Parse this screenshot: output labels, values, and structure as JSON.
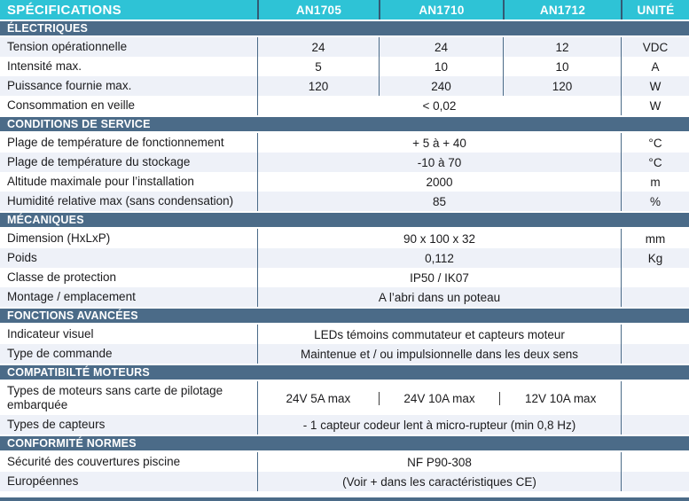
{
  "table": {
    "header": {
      "spec_label": "SPÉCIFICATIONS",
      "columns": [
        "AN1705",
        "AN1710",
        "AN1712"
      ],
      "unit_label": "UNITÉ"
    },
    "colors": {
      "teal": "#2ec3d6",
      "slate": "#4b6b88",
      "header_divider": "#335a74",
      "row_alt": "#eef1f8",
      "mini_divider": "#3c3c3c"
    },
    "sections": [
      {
        "title": "ÉLECTRIQUES",
        "rows": [
          {
            "label": "Tension opérationnelle",
            "values": [
              "24",
              "24",
              "12"
            ],
            "unit": "VDC",
            "shaded": true
          },
          {
            "label": "Intensité max.",
            "values": [
              "5",
              "10",
              "10"
            ],
            "unit": "A",
            "shaded": false
          },
          {
            "label": "Puissance fournie max.",
            "values": [
              "120",
              "240",
              "120"
            ],
            "unit": "W",
            "shaded": true
          },
          {
            "label": "Consommation en veille",
            "span": "< 0,02",
            "unit": "W",
            "shaded": false
          }
        ]
      },
      {
        "title": "CONDITIONS DE SERVICE",
        "rows": [
          {
            "label": "Plage de température de fonctionnement",
            "span": "+ 5 à + 40",
            "unit": "°C",
            "shaded": false
          },
          {
            "label": "Plage de température du stockage",
            "span": "-10 à 70",
            "unit": "°C",
            "shaded": true
          },
          {
            "label": "Altitude maximale pour l’installation",
            "span": "2000",
            "unit": "m",
            "shaded": false
          },
          {
            "label": "Humidité relative max (sans condensation)",
            "span": "85",
            "unit": "%",
            "shaded": true
          }
        ]
      },
      {
        "title": "MÉCANIQUES",
        "rows": [
          {
            "label": "Dimension (HxLxP)",
            "span": "90 x 100 x 32",
            "unit": "mm",
            "shaded": false
          },
          {
            "label": "Poids",
            "span": "0,112",
            "unit": "Kg",
            "shaded": true
          },
          {
            "label": "Classe de protection",
            "span": "IP50 / IK07",
            "unit": "",
            "shaded": false
          },
          {
            "label": "Montage / emplacement",
            "span": "A l’abri dans un poteau",
            "unit": "",
            "shaded": true
          }
        ]
      },
      {
        "title": "FONCTIONS AVANCÉES",
        "rows": [
          {
            "label": "Indicateur visuel",
            "span": "LEDs témoins commutateur et capteurs moteur",
            "unit": "",
            "shaded": false
          },
          {
            "label": "Type de commande",
            "span": "Maintenue et / ou impulsionnelle dans les deux sens",
            "unit": "",
            "shaded": true
          }
        ]
      },
      {
        "title": "COMPATIBILTÉ MOTEURS",
        "rows": [
          {
            "label": "Types de moteurs sans carte de pilotage embarquée",
            "split": [
              "24V 5A max",
              "24V 10A max",
              "12V 10A max"
            ],
            "unit": "",
            "shaded": false,
            "tall": true
          },
          {
            "label": "Types de capteurs",
            "span": "- 1 capteur codeur lent à micro-rupteur (min 0,8 Hz)",
            "unit": "",
            "shaded": true
          }
        ]
      },
      {
        "title": "CONFORMITÉ NORMES",
        "rows": [
          {
            "label": "Sécurité des couvertures piscine",
            "span": "NF P90-308",
            "unit": "",
            "shaded": false
          },
          {
            "label": "Européennes",
            "span": "(Voir + dans les caractéristiques CE)",
            "unit": "",
            "shaded": true
          }
        ]
      }
    ]
  }
}
